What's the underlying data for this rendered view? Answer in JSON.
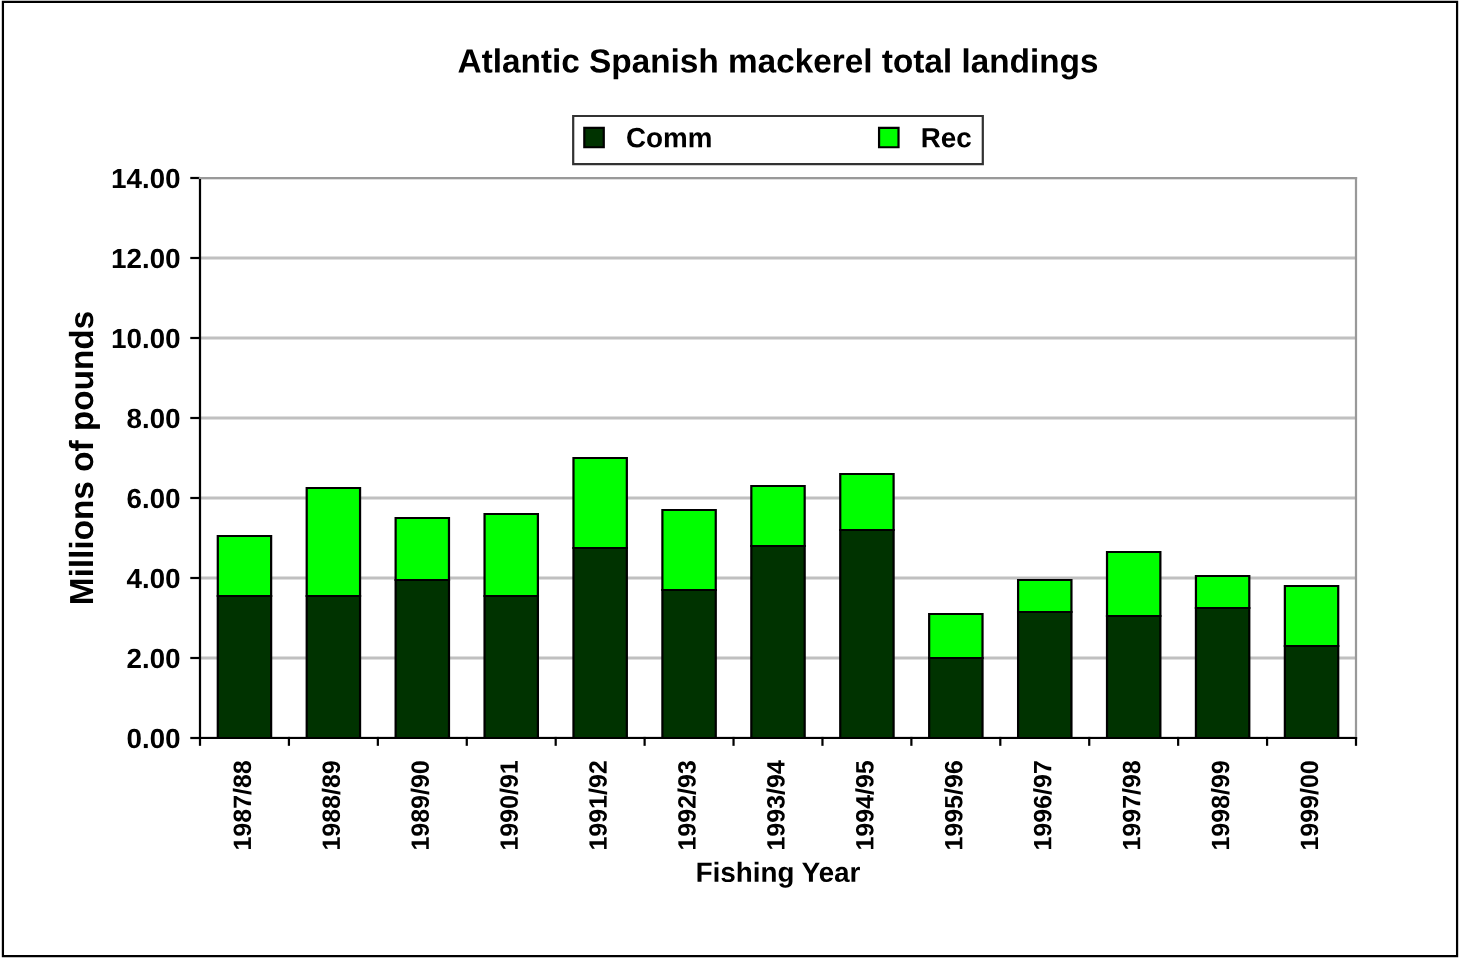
{
  "chart_data": {
    "type": "bar",
    "title": "Atlantic Spanish mackerel total landings",
    "xlabel": "Fishing Year",
    "ylabel": "Millions of pounds",
    "categories": [
      "1987/88",
      "1988/89",
      "1989/90",
      "1990/91",
      "1991/92",
      "1992/93",
      "1993/94",
      "1994/95",
      "1995/96",
      "1996/97",
      "1997/98",
      "1998/99",
      "1999/00"
    ],
    "stacked": true,
    "series": [
      {
        "name": "Comm",
        "color": "#003300",
        "values": [
          3.55,
          3.55,
          3.95,
          3.55,
          4.75,
          3.7,
          4.8,
          5.2,
          2.0,
          3.15,
          3.05,
          3.25,
          2.3
        ]
      },
      {
        "name": "Rec",
        "color": "#00ff00",
        "values": [
          1.5,
          2.7,
          1.55,
          2.05,
          2.25,
          2.0,
          1.5,
          1.4,
          1.1,
          0.8,
          1.6,
          0.8,
          1.5
        ]
      }
    ],
    "ylim": [
      0,
      14
    ],
    "yticks": [
      {
        "value": 0,
        "label": "0.00"
      },
      {
        "value": 2,
        "label": "2.00"
      },
      {
        "value": 4,
        "label": "4.00"
      },
      {
        "value": 6,
        "label": "6.00"
      },
      {
        "value": 8,
        "label": "8.00"
      },
      {
        "value": 10,
        "label": "10.00"
      },
      {
        "value": 12,
        "label": "12.00"
      },
      {
        "value": 14,
        "label": "14.00"
      }
    ],
    "grid": "y",
    "legend": "top"
  }
}
